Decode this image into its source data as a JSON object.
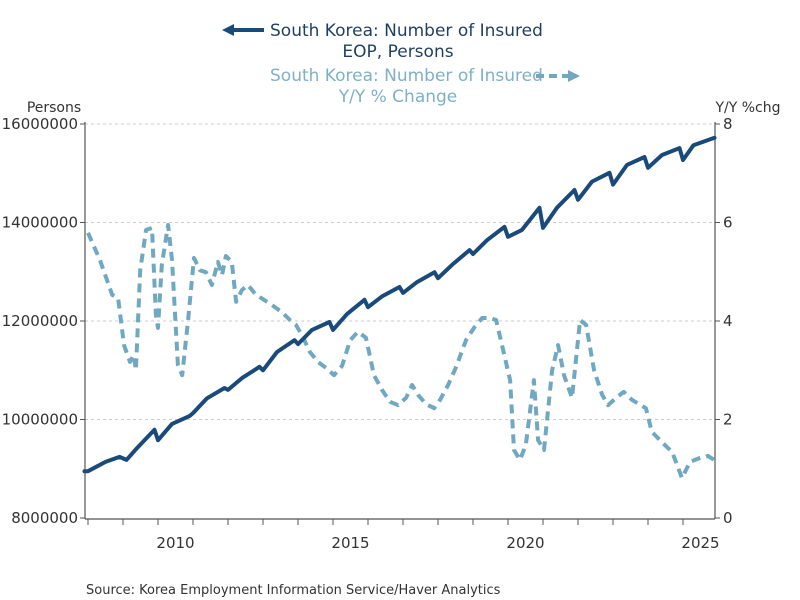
{
  "chart_data": {
    "type": "line",
    "title": "",
    "source": "Source:  Korea Employment Information Service/Haver Analytics",
    "x_axis": {
      "tick_labels": [
        "2010",
        "2015",
        "2020",
        "2025"
      ],
      "range": [
        2007.9,
        2025.9
      ],
      "minor_ticks_every_year": true
    },
    "y_left": {
      "label": "Persons",
      "range": [
        8000000,
        16000000
      ],
      "tick_labels": [
        "8000000",
        "10000000",
        "12000000",
        "14000000",
        "16000000"
      ],
      "ticks": [
        8000000,
        10000000,
        12000000,
        14000000,
        16000000
      ]
    },
    "y_right": {
      "label": "Y/Y %chg",
      "range": [
        0,
        8
      ],
      "tick_labels": [
        "0",
        "2",
        "4",
        "6",
        "8"
      ],
      "ticks": [
        0,
        2,
        4,
        6,
        8
      ]
    },
    "grid": true,
    "legend": {
      "placement": "top-center",
      "entries": [
        {
          "line1": "South Korea: Number of Insured",
          "line2": "EOP, Persons",
          "axis": "left",
          "style": "solid",
          "color": "#1a4a7a"
        },
        {
          "line1": "South Korea: Number of Insured",
          "line2": "Y/Y % Change",
          "axis": "right",
          "style": "dashed",
          "color": "#6fa8c0"
        }
      ]
    },
    "series": [
      {
        "name": "South Korea: Number of Insured EOP, Persons",
        "axis": "left",
        "color": "#1a4a7a",
        "style": "solid",
        "x": [
          2007.9,
          2008.0,
          2008.5,
          2008.9,
          2009.1,
          2009.4,
          2009.9,
          2010.0,
          2010.4,
          2010.9,
          2011.0,
          2011.4,
          2011.9,
          2012.0,
          2012.4,
          2012.9,
          2013.0,
          2013.4,
          2013.9,
          2014.0,
          2014.4,
          2014.9,
          2015.0,
          2015.4,
          2015.9,
          2016.0,
          2016.4,
          2016.9,
          2017.0,
          2017.4,
          2017.9,
          2018.0,
          2018.4,
          2018.9,
          2019.0,
          2019.4,
          2019.9,
          2020.0,
          2020.4,
          2020.9,
          2021.0,
          2021.4,
          2021.9,
          2022.0,
          2022.4,
          2022.9,
          2023.0,
          2023.4,
          2023.9,
          2024.0,
          2024.4,
          2024.9,
          2025.0,
          2025.3,
          2025.9
        ],
        "values": [
          8950000,
          8950000,
          9140000,
          9240000,
          9180000,
          9420000,
          9790000,
          9580000,
          9910000,
          10070000,
          10130000,
          10430000,
          10640000,
          10600000,
          10840000,
          11070000,
          11000000,
          11370000,
          11610000,
          11530000,
          11820000,
          11980000,
          11820000,
          12140000,
          12430000,
          12280000,
          12500000,
          12690000,
          12570000,
          12790000,
          12990000,
          12870000,
          13140000,
          13440000,
          13360000,
          13640000,
          13910000,
          13710000,
          13850000,
          14300000,
          13890000,
          14300000,
          14660000,
          14460000,
          14830000,
          15010000,
          14770000,
          15170000,
          15330000,
          15110000,
          15370000,
          15510000,
          15270000,
          15570000,
          15720000
        ]
      },
      {
        "name": "South Korea: Number of Insured Y/Y % Change",
        "axis": "right",
        "color": "#6fa8c0",
        "style": "dashed",
        "x": [
          2008.0,
          2008.34,
          2008.69,
          2008.86,
          2009.03,
          2009.2,
          2009.31,
          2009.37,
          2009.49,
          2009.66,
          2009.83,
          2009.94,
          2010.0,
          2010.11,
          2010.29,
          2010.4,
          2010.57,
          2010.69,
          2010.86,
          2011.03,
          2011.2,
          2011.37,
          2011.54,
          2011.71,
          2011.83,
          2011.94,
          2012.11,
          2012.23,
          2012.4,
          2012.57,
          2012.8,
          2013.03,
          2013.26,
          2013.54,
          2013.77,
          2013.94,
          2014.11,
          2014.34,
          2014.57,
          2014.8,
          2015.03,
          2015.26,
          2015.49,
          2015.71,
          2015.94,
          2016.17,
          2016.4,
          2016.63,
          2016.86,
          2017.09,
          2017.26,
          2017.43,
          2017.66,
          2017.89,
          2018.06,
          2018.29,
          2018.51,
          2018.8,
          2019.03,
          2019.26,
          2019.49,
          2019.66,
          2019.83,
          2020.06,
          2020.17,
          2020.34,
          2020.51,
          2020.74,
          2020.86,
          2021.03,
          2021.26,
          2021.43,
          2021.6,
          2021.83,
          2022.06,
          2022.23,
          2022.46,
          2022.69,
          2022.86,
          2023.09,
          2023.31,
          2023.54,
          2023.94,
          2024.11,
          2024.4,
          2024.69,
          2024.97,
          2025.2,
          2025.49,
          2025.71,
          2025.89
        ],
        "values": [
          5.79,
          5.24,
          4.53,
          4.47,
          3.51,
          3.17,
          3.31,
          3.0,
          5.03,
          5.85,
          5.89,
          4.12,
          3.86,
          5.14,
          5.95,
          5.24,
          3.11,
          2.9,
          4.02,
          5.28,
          5.03,
          4.99,
          4.73,
          5.2,
          4.93,
          5.32,
          5.2,
          4.39,
          4.63,
          4.73,
          4.53,
          4.43,
          4.32,
          4.18,
          4.02,
          3.92,
          3.72,
          3.37,
          3.17,
          3.05,
          2.9,
          3.09,
          3.61,
          3.78,
          3.66,
          2.9,
          2.6,
          2.36,
          2.29,
          2.44,
          2.7,
          2.5,
          2.31,
          2.23,
          2.4,
          2.7,
          3.05,
          3.61,
          3.86,
          4.06,
          4.06,
          4.02,
          3.51,
          2.8,
          1.38,
          1.18,
          1.48,
          2.8,
          1.58,
          1.38,
          3.0,
          3.51,
          2.9,
          2.44,
          4.02,
          3.92,
          3.0,
          2.5,
          2.29,
          2.44,
          2.56,
          2.4,
          2.23,
          1.75,
          1.54,
          1.34,
          0.81,
          1.14,
          1.22,
          1.26,
          1.18
        ]
      }
    ]
  }
}
